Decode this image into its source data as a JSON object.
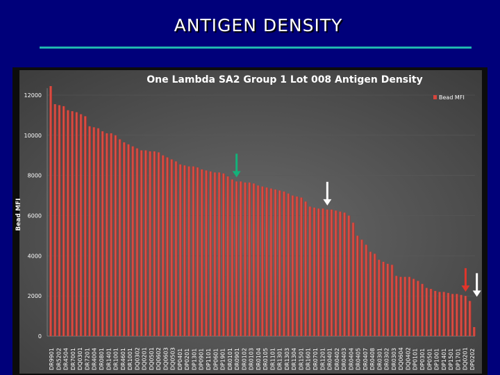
{
  "slide": {
    "title": "ANTIGEN DENSITY"
  },
  "colors": {
    "background": "#00007a",
    "rule": "#20b6b0",
    "bar": "#d8453c",
    "panel": "#0c0c0c",
    "green_arrow": "#13b27a",
    "red_arrow": "#e0352b",
    "white_arrow": "#ffffff"
  },
  "chart_data": {
    "type": "bar",
    "title": "One Lambda SA2 Group 1 Lot 008 Antigen Density",
    "xlabel": "",
    "ylabel": "Bead MFI",
    "ylim": [
      0,
      12000
    ],
    "yticks": [
      0,
      2000,
      4000,
      6000,
      8000,
      10000,
      12000
    ],
    "legend": {
      "placement": "top-right",
      "entries": [
        "Bead MFI"
      ]
    },
    "series": [
      {
        "name": "Bead MFI",
        "values": [
          12450,
          11550,
          11500,
          11450,
          11250,
          11200,
          11150,
          11050,
          10950,
          10450,
          10400,
          10350,
          10200,
          10100,
          10100,
          10000,
          9800,
          9650,
          9550,
          9450,
          9350,
          9250,
          9250,
          9200,
          9200,
          9150,
          9000,
          8900,
          8800,
          8700,
          8550,
          8500,
          8450,
          8450,
          8400,
          8300,
          8250,
          8200,
          8150,
          8150,
          8100,
          7950,
          7800,
          7700,
          7700,
          7650,
          7650,
          7600,
          7500,
          7450,
          7400,
          7350,
          7300,
          7250,
          7200,
          7100,
          7000,
          6950,
          6900,
          6700,
          6450,
          6400,
          6350,
          6350,
          6300,
          6300,
          6250,
          6200,
          6150,
          6000,
          5650,
          5000,
          4800,
          4550,
          4200,
          4100,
          3800,
          3700,
          3600,
          3550,
          3000,
          2950,
          2950,
          2950,
          2850,
          2750,
          2600,
          2400,
          2350,
          2250,
          2200,
          2200,
          2150,
          2100,
          2100,
          2050,
          2000,
          1750,
          450
        ]
      }
    ],
    "categories_visible": [
      "DR9901",
      "DR5202",
      "DR4504",
      "DR7001",
      "DQ0301",
      "DR7201",
      "DR4004",
      "DR0801",
      "DR1401",
      "DR1001",
      "DR4601",
      "DR1001",
      "DQ0302",
      "DQ0201",
      "DQ0501",
      "DQ0602",
      "DQ0603",
      "DQ0503",
      "DP0401",
      "DP0201",
      "DP1301",
      "DP0901",
      "DP1101",
      "DP0601",
      "DP1901",
      "DR0101",
      "DR0901",
      "DR0102",
      "DR0103",
      "DR0104",
      "DR0105",
      "DR1101",
      "DR1301",
      "DR1303",
      "DR1304",
      "DR1501",
      "DR1601",
      "DR0701",
      "DR1201",
      "DR0401",
      "DR0402",
      "DR0403",
      "DR0404",
      "DR0405",
      "DR0407",
      "DR0408",
      "DR0301",
      "DR0302",
      "DR0303",
      "DQ0604",
      "DQ0402",
      "DP0101",
      "DP0301",
      "DP0501",
      "DP1001",
      "DP1401",
      "DP1501",
      "DP1701",
      "DQ0201",
      "DP0202"
    ],
    "annotations": [
      {
        "type": "arrow",
        "color": "green",
        "points_to_value": 7700
      },
      {
        "type": "arrow",
        "color": "white",
        "points_to_value": 6300
      },
      {
        "type": "arrow",
        "color": "red",
        "points_to_value": 2000
      },
      {
        "type": "arrow",
        "color": "white",
        "points_to_value": 1750
      }
    ]
  }
}
